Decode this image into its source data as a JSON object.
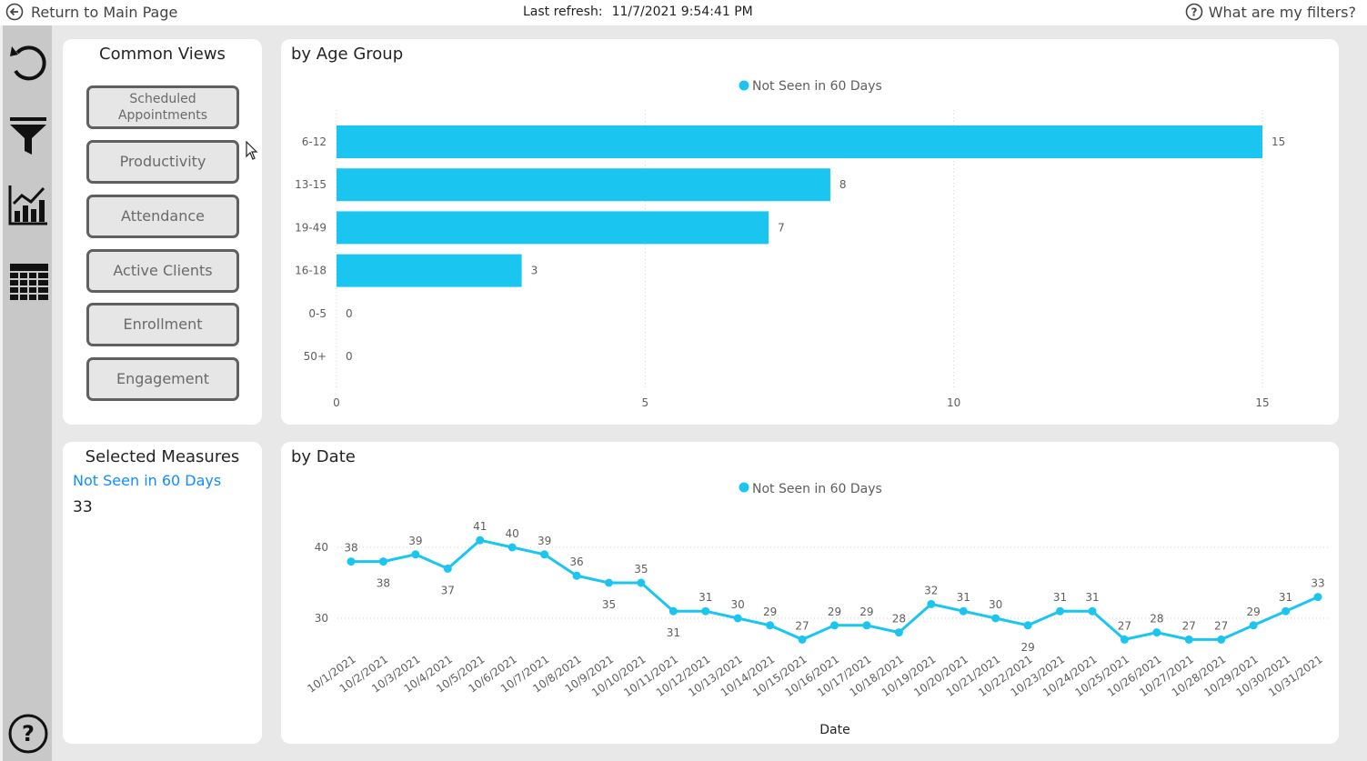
{
  "topbar": {
    "return_label": "Return to Main Page",
    "refresh_label": "Last refresh:",
    "refresh_value": "11/7/2021 9:54:41 PM",
    "filters_label": "What are my filters?"
  },
  "leftrail": {
    "icons": [
      "reset-icon",
      "filter-icon",
      "chart-icon",
      "table-icon",
      "help-icon"
    ]
  },
  "common_views": {
    "title": "Common Views",
    "buttons": [
      "Scheduled Appointments",
      "Productivity",
      "Attendance",
      "Active Clients",
      "Enrollment",
      "Engagement"
    ]
  },
  "selected_measures": {
    "title": "Selected Measures",
    "measure_name": "Not Seen in 60 Days",
    "measure_value": "33"
  },
  "colors": {
    "series": "#1ac6f0",
    "measure_link": "#118dff"
  },
  "chart_data": [
    {
      "type": "bar",
      "title": "by Age Group",
      "orientation": "horizontal",
      "legend": "top-center",
      "series": [
        {
          "name": "Not Seen in 60 Days"
        }
      ],
      "categories": [
        "6-12",
        "13-15",
        "19-49",
        "16-18",
        "0-5",
        "50+"
      ],
      "values": [
        15,
        8,
        7,
        3,
        0,
        0
      ],
      "xticks": [
        "0",
        "5",
        "10",
        "15"
      ],
      "xlim": [
        0,
        15
      ],
      "grid": true
    },
    {
      "type": "line",
      "title": "by Date",
      "xlabel": "Date",
      "legend": "top-center",
      "series": [
        {
          "name": "Not Seen in 60 Days"
        }
      ],
      "x": [
        "10/1/2021",
        "10/2/2021",
        "10/3/2021",
        "10/4/2021",
        "10/5/2021",
        "10/6/2021",
        "10/7/2021",
        "10/8/2021",
        "10/9/2021",
        "10/10/2021",
        "10/11/2021",
        "10/12/2021",
        "10/13/2021",
        "10/14/2021",
        "10/15/2021",
        "10/16/2021",
        "10/17/2021",
        "10/18/2021",
        "10/19/2021",
        "10/20/2021",
        "10/21/2021",
        "10/22/2021",
        "10/23/2021",
        "10/24/2021",
        "10/25/2021",
        "10/26/2021",
        "10/27/2021",
        "10/28/2021",
        "10/29/2021",
        "10/30/2021",
        "10/31/2021"
      ],
      "values": [
        38,
        38,
        39,
        37,
        41,
        40,
        39,
        36,
        35,
        35,
        31,
        31,
        30,
        29,
        27,
        29,
        29,
        28,
        32,
        31,
        30,
        29,
        31,
        31,
        27,
        28,
        27,
        27,
        29,
        31,
        33
      ],
      "label_below": [
        false,
        true,
        false,
        true,
        false,
        false,
        false,
        false,
        true,
        false,
        true,
        false,
        false,
        false,
        false,
        false,
        false,
        false,
        false,
        false,
        false,
        true,
        false,
        false,
        false,
        false,
        false,
        false,
        false,
        false,
        false
      ],
      "yticks": [
        "30",
        "40"
      ],
      "grid": true
    }
  ]
}
